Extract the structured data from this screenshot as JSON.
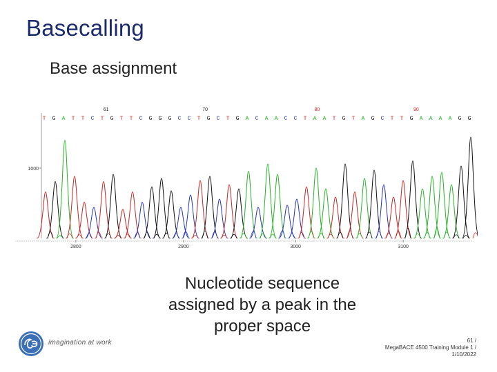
{
  "slide": {
    "title": "Basecalling",
    "subtitle": "Base assignment",
    "caption_lines": [
      "Nucleotide sequence",
      "assigned by a peak in the",
      "proper space"
    ],
    "brand_tagline": "imagination at work",
    "footer_lines": [
      "61 /",
      "MegaBACE 4500 Training Module 1 /",
      "1/10/2022"
    ]
  },
  "chart_data": {
    "type": "line",
    "title": "",
    "xlabel": "",
    "ylabel": "",
    "sequence": [
      "T",
      "G",
      "A",
      "T",
      "T",
      "C",
      "T",
      "G",
      "T",
      "T",
      "C",
      "G",
      "G",
      "G",
      "C",
      "C",
      "T",
      "G",
      "C",
      "T",
      "G",
      "A",
      "C",
      "A",
      "A",
      "C",
      "C",
      "T",
      "A",
      "A",
      "T",
      "G",
      "T",
      "A",
      "G",
      "C",
      "T",
      "T",
      "G",
      "A",
      "A",
      "A",
      "A",
      "G",
      "G"
    ],
    "top_scale_labels": [
      "61",
      "70",
      "80",
      "90"
    ],
    "x_ticks": [
      "2800",
      "2900",
      "3000",
      "3100"
    ],
    "y_ticks": [
      "1000"
    ],
    "base_colors": {
      "A": "#22b422",
      "C": "#2233bb",
      "G": "#111111",
      "T": "#cc2222"
    },
    "label_colors": {
      "scale_black": "#222222",
      "scale_red": "#cc2222"
    }
  }
}
